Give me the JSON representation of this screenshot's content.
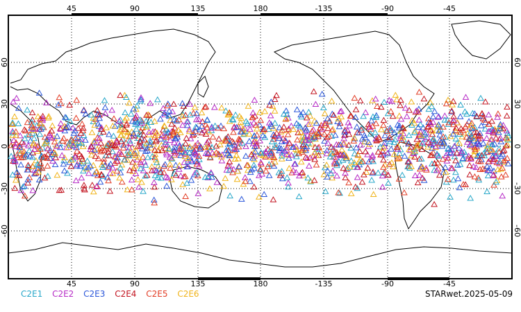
{
  "map": {
    "top_lon_labels": [
      "45",
      "90",
      "135",
      "180",
      "-135",
      "-90",
      "-45"
    ],
    "bottom_lon_labels": [
      "45",
      "90",
      "135",
      "180",
      "-135",
      "-90",
      "-45"
    ],
    "lat_labels": [
      "60",
      "30",
      "0",
      "-30",
      "-60"
    ],
    "projection": "cylindrical equidistant, centered 180",
    "marker_shape": "open-triangle"
  },
  "legend": [
    {
      "label": "C2E1",
      "color": "#27a7c9"
    },
    {
      "label": "C2E2",
      "color": "#b62ac6"
    },
    {
      "label": "C2E3",
      "color": "#2a56d9"
    },
    {
      "label": "C2E4",
      "color": "#c2121e"
    },
    {
      "label": "C2E5",
      "color": "#e23c24"
    },
    {
      "label": "C2E6",
      "color": "#f0b318"
    }
  ],
  "footer": {
    "stamp": "STARwet.2025-05-09"
  }
}
